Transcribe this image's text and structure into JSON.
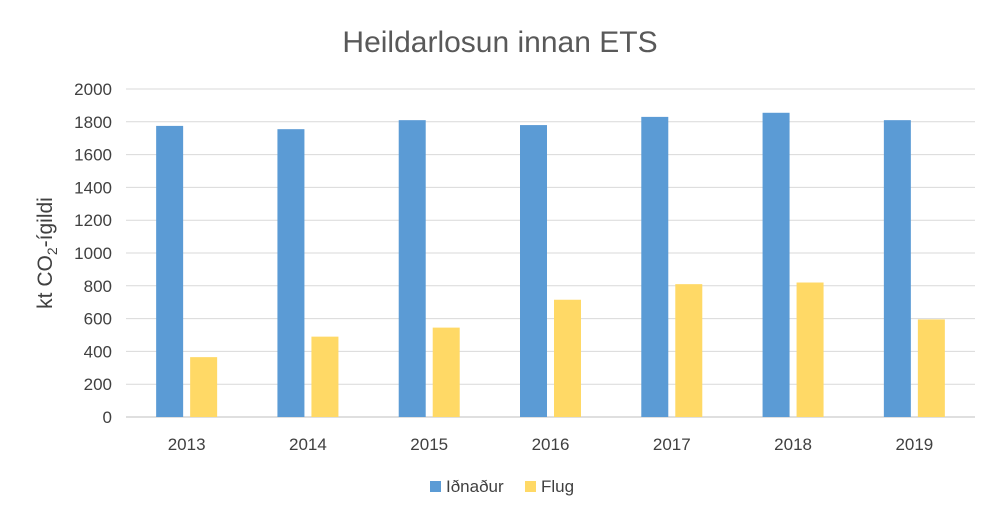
{
  "chart_data": {
    "type": "bar",
    "title": "Heildarlosun innan ETS",
    "ylabel_main": "kt CO",
    "ylabel_sub": "2",
    "ylabel_suffix": "-ígildi",
    "xlabel": "",
    "ylim": [
      0,
      2000
    ],
    "ytick_step": 200,
    "grid": true,
    "legend_position": "bottom",
    "categories": [
      "2013",
      "2014",
      "2015",
      "2016",
      "2017",
      "2018",
      "2019"
    ],
    "series": [
      {
        "name": "Iðnaður",
        "color": "#5b9bd5",
        "values": [
          1775,
          1755,
          1810,
          1780,
          1830,
          1855,
          1810
        ]
      },
      {
        "name": "Flug",
        "color": "#ffd966",
        "values": [
          365,
          490,
          545,
          715,
          810,
          820,
          595
        ]
      }
    ]
  }
}
